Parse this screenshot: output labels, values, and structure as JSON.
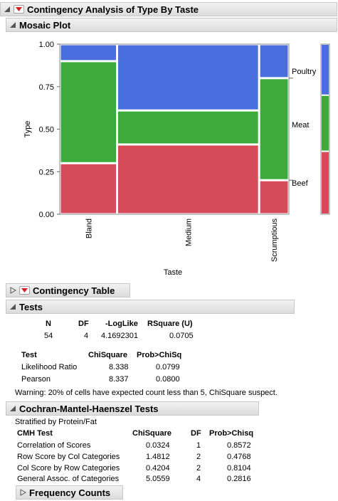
{
  "main_title": "Contingency Analysis of Type By Taste",
  "mosaic": {
    "title": "Mosaic Plot",
    "ylabel": "Type",
    "xlabel": "Taste",
    "yticks": [
      "1.00",
      "0.75",
      "0.50",
      "0.25",
      "0.00"
    ],
    "categories": [
      "Bland",
      "Medium",
      "Scrumptious"
    ],
    "legend": [
      "Poultry",
      "Meat",
      "Beef"
    ],
    "colors": {
      "Poultry": "#4a6fdc",
      "Meat": "#3cab3c",
      "Beef": "#d64a5a"
    }
  },
  "chart_data": {
    "type": "mosaic",
    "title": "Mosaic Plot",
    "xlabel": "Taste",
    "ylabel": "Type",
    "ylim": [
      0,
      1
    ],
    "categories": [
      "Bland",
      "Medium",
      "Scrumptious"
    ],
    "column_widths": [
      0.25,
      0.62,
      0.13
    ],
    "series": [
      {
        "name": "Beef",
        "values": [
          0.3,
          0.41,
          0.2
        ]
      },
      {
        "name": "Meat",
        "values": [
          0.6,
          0.2,
          0.6
        ]
      },
      {
        "name": "Poultry",
        "values": [
          0.1,
          0.39,
          0.2
        ]
      }
    ],
    "marginal": [
      {
        "name": "Beef",
        "value": 0.37
      },
      {
        "name": "Meat",
        "value": 0.33
      },
      {
        "name": "Poultry",
        "value": 0.3
      }
    ]
  },
  "contingency_table": {
    "title": "Contingency Table"
  },
  "tests": {
    "title": "Tests",
    "summary_headers": [
      "N",
      "DF",
      "-LogLike",
      "RSquare (U)"
    ],
    "summary_values": [
      "54",
      "4",
      "4.1692301",
      "0.0705"
    ],
    "test_headers": [
      "Test",
      "ChiSquare",
      "Prob>ChiSq"
    ],
    "rows": [
      {
        "test": "Likelihood Ratio",
        "chisq": "8.338",
        "prob": "0.0799"
      },
      {
        "test": "Pearson",
        "chisq": "8.337",
        "prob": "0.0800"
      }
    ],
    "warning": "Warning: 20% of cells have expected count less than 5, ChiSquare suspect."
  },
  "cmh": {
    "title": "Cochran-Mantel-Haenszel Tests",
    "stratified": "Stratified by  Protein/Fat",
    "headers": [
      "CMH Test",
      "ChiSquare",
      "DF",
      "Prob>Chisq"
    ],
    "rows": [
      {
        "test": "Correlation of Scores",
        "chisq": "0.0324",
        "df": "1",
        "prob": "0.8572"
      },
      {
        "test": "Row Score by Col Categories",
        "chisq": "1.4812",
        "df": "2",
        "prob": "0.4768"
      },
      {
        "test": "Col Score by Row Categories",
        "chisq": "0.4204",
        "df": "2",
        "prob": "0.8104"
      },
      {
        "test": "General Assoc. of Categories",
        "chisq": "5.0559",
        "df": "4",
        "prob": "0.2816"
      }
    ]
  },
  "frequency_counts": {
    "title": "Frequency Counts"
  }
}
